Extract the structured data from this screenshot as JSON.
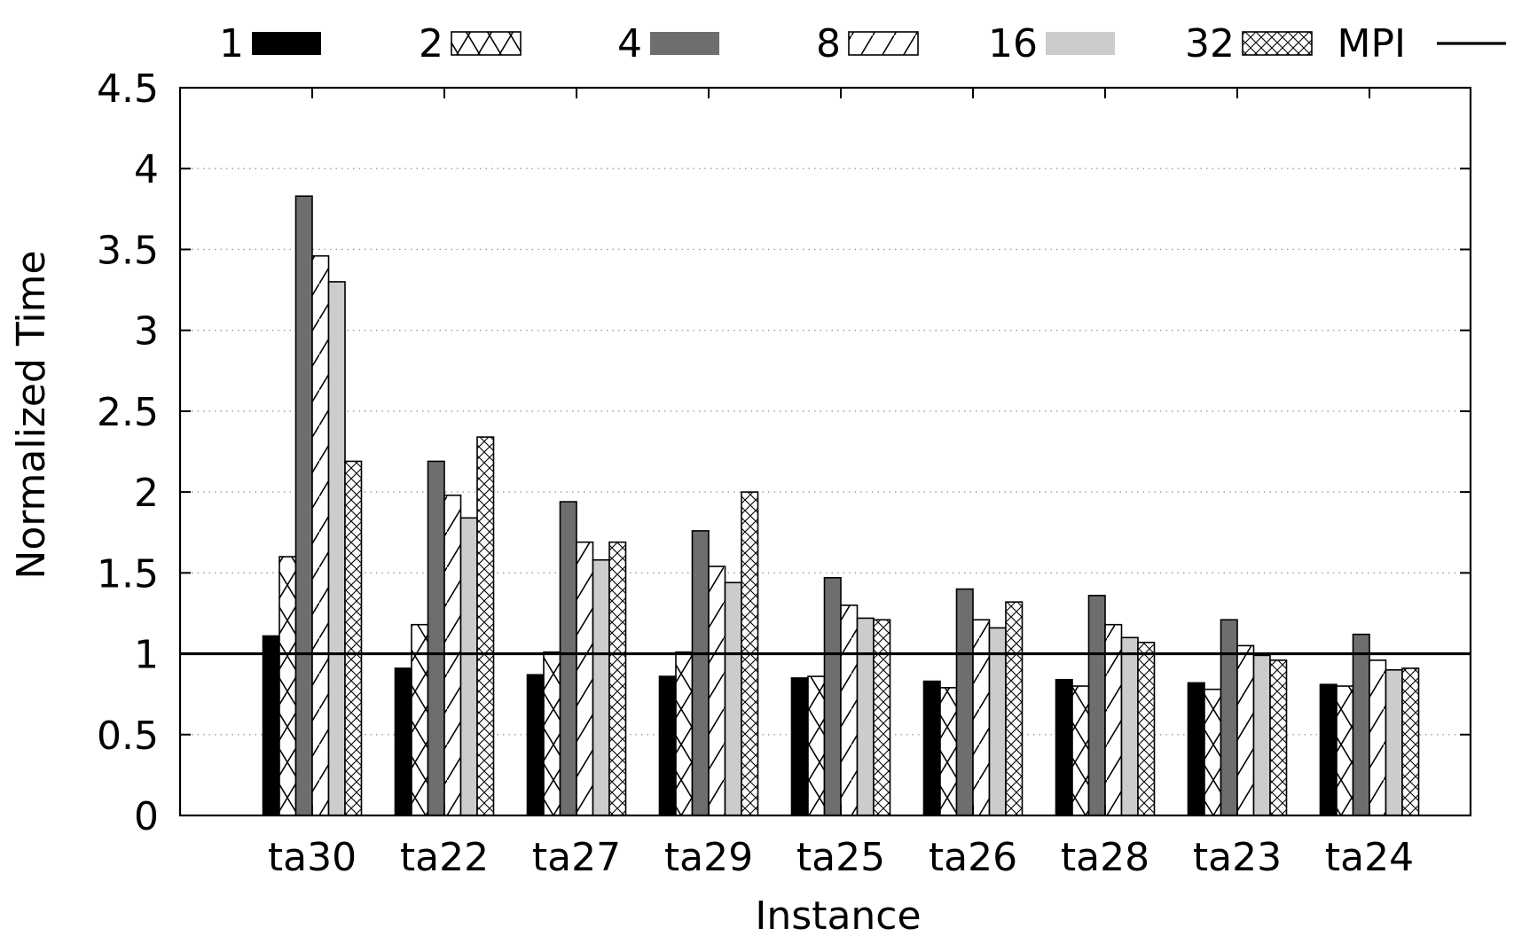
{
  "chart_data": {
    "type": "bar",
    "title": "",
    "xlabel": "Instance",
    "ylabel": "Normalized Time",
    "ylim": [
      0,
      4.5
    ],
    "yticks": [
      "0",
      "0.5",
      "1",
      "1.5",
      "2",
      "2.5",
      "3",
      "3.5",
      "4",
      "4.5"
    ],
    "grid": "horizontal dotted",
    "legend_position": "top",
    "categories": [
      "ta30",
      "ta22",
      "ta27",
      "ta29",
      "ta25",
      "ta26",
      "ta28",
      "ta23",
      "ta24"
    ],
    "series": [
      {
        "name": "1",
        "style": "solid",
        "fill": "#000000",
        "values": [
          1.11,
          0.91,
          0.87,
          0.86,
          0.85,
          0.83,
          0.84,
          0.82,
          0.81
        ]
      },
      {
        "name": "2",
        "style": "crosshatch",
        "fill": "#ffffff",
        "values": [
          1.6,
          1.18,
          1.01,
          1.01,
          0.86,
          0.79,
          0.8,
          0.78,
          0.8
        ]
      },
      {
        "name": "4",
        "style": "solid",
        "fill": "#6e6e6e",
        "values": [
          3.83,
          2.19,
          1.94,
          1.76,
          1.47,
          1.4,
          1.36,
          1.21,
          1.12
        ]
      },
      {
        "name": "8",
        "style": "diagonal",
        "fill": "#ffffff",
        "values": [
          3.46,
          1.98,
          1.69,
          1.54,
          1.3,
          1.21,
          1.18,
          1.05,
          0.96
        ]
      },
      {
        "name": "16",
        "style": "solid",
        "fill": "#cccccc",
        "values": [
          3.3,
          1.84,
          1.58,
          1.44,
          1.22,
          1.16,
          1.1,
          0.99,
          0.9
        ]
      },
      {
        "name": "32",
        "style": "fine-crosshatch",
        "fill": "#ffffff",
        "values": [
          2.19,
          2.34,
          1.69,
          2.0,
          1.21,
          1.32,
          1.07,
          0.96,
          0.91
        ]
      }
    ],
    "reference_lines": [
      {
        "name": "MPI",
        "value": 1.0,
        "color": "#000000"
      }
    ]
  }
}
